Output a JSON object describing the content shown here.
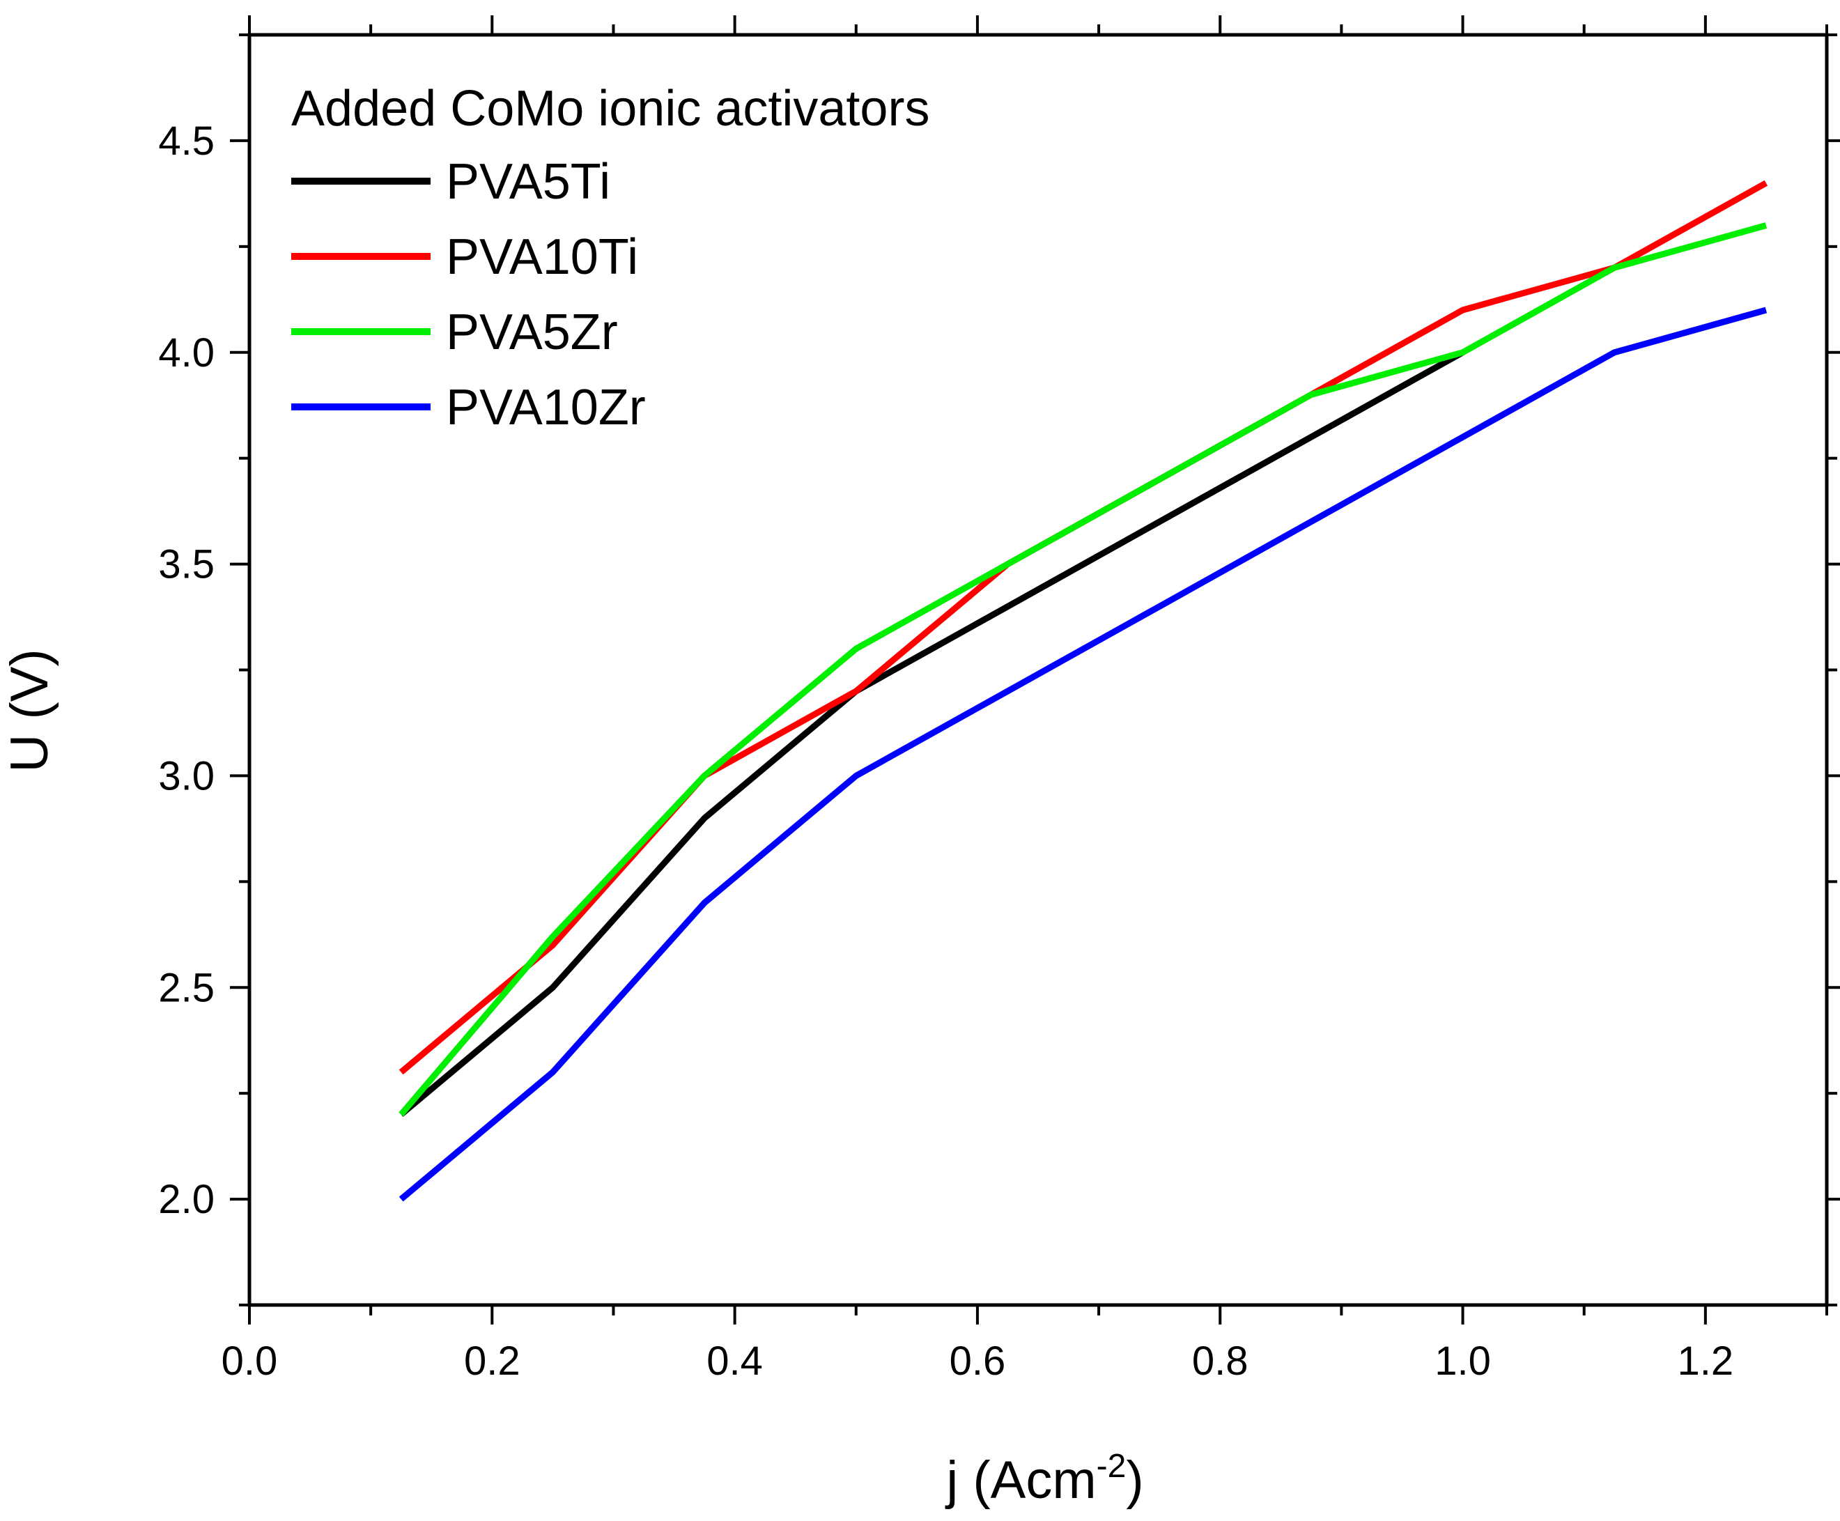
{
  "chart_data": {
    "type": "line",
    "title": "",
    "xlabel": "j (Acm",
    "xlabel_sup": "-2",
    "xlabel_close": ")",
    "ylabel": "U (V)",
    "xlim": [
      0.0,
      1.3
    ],
    "ylim": [
      1.75,
      4.75
    ],
    "xticks": [
      0.0,
      0.2,
      0.4,
      0.6,
      0.8,
      1.0,
      1.2
    ],
    "xtick_labels": [
      "0.0",
      "0.2",
      "0.4",
      "0.6",
      "0.8",
      "1.0",
      "1.2"
    ],
    "yticks": [
      2.0,
      2.5,
      3.0,
      3.5,
      4.0,
      4.5
    ],
    "ytick_labels": [
      "2.0",
      "2.5",
      "3.0",
      "3.5",
      "4.0",
      "4.5"
    ],
    "legend_title": "Added CoMo ionic activators",
    "legend_position": "top-left",
    "x": [
      0.125,
      0.25,
      0.375,
      0.5,
      0.625,
      0.75,
      0.875,
      1.0,
      1.125,
      1.25
    ],
    "series": [
      {
        "name": "PVA5Ti",
        "color": "#000000",
        "values": [
          2.2,
          2.5,
          2.9,
          3.2,
          3.4,
          3.6,
          3.8,
          4.0,
          null,
          null
        ]
      },
      {
        "name": "PVA10Ti",
        "color": "#ff0000",
        "values": [
          2.3,
          2.6,
          3.0,
          3.2,
          3.5,
          3.7,
          3.9,
          4.1,
          4.2,
          4.4
        ]
      },
      {
        "name": "PVA5Zr",
        "color": "#00ee00",
        "values": [
          2.2,
          2.62,
          3.0,
          3.3,
          3.5,
          3.7,
          3.9,
          4.0,
          4.2,
          4.3
        ]
      },
      {
        "name": "PVA10Zr",
        "color": "#0000ff",
        "values": [
          2.0,
          2.3,
          2.7,
          3.0,
          3.2,
          3.4,
          3.6,
          3.8,
          4.0,
          4.1
        ]
      }
    ]
  }
}
